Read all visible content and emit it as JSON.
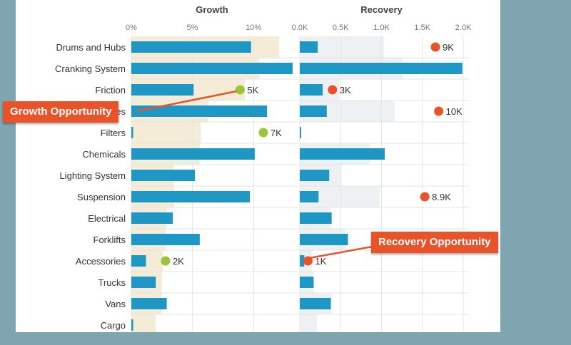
{
  "chart_data": {
    "type": "bar",
    "categories": [
      "Drums and Hubs",
      "Cranking System",
      "Friction",
      "Brakes",
      "Filters",
      "Chemicals",
      "Lighting System",
      "Suspension",
      "Electrical",
      "Forklifts",
      "Accessories",
      "Trucks",
      "Vans",
      "Cargo"
    ],
    "panels": [
      {
        "title": "Growth",
        "xlim": [
          0,
          13.2
        ],
        "ticks": [
          0,
          5,
          10
        ],
        "tick_labels": [
          "0%",
          "5%",
          "10%"
        ],
        "bar_values": [
          9.8,
          13.2,
          5.1,
          11.1,
          0.15,
          10.1,
          5.2,
          9.7,
          3.4,
          5.6,
          1.2,
          2.0,
          2.9,
          0.15
        ],
        "background_values": [
          12.1,
          10.5,
          9.3,
          6.3,
          5.7,
          5.6,
          3.5,
          3.5,
          2.9,
          2.8,
          2.6,
          2.5,
          2.5,
          2.0
        ],
        "markers": [
          {
            "category": "Friction",
            "value": 8.9,
            "label": "5K"
          },
          {
            "category": "Filters",
            "value": 10.8,
            "label": "7K"
          },
          {
            "category": "Accessories",
            "value": 2.8,
            "label": "2K"
          }
        ],
        "marker_color": "#9ac43a"
      },
      {
        "title": "Recovery",
        "xlim": [
          0,
          2000
        ],
        "ticks": [
          0,
          500,
          1000,
          1500,
          2000
        ],
        "tick_labels": [
          "0.0K",
          "0.5K",
          "1.0K",
          "1.5K",
          "2.0K"
        ],
        "bar_values": [
          220,
          1990,
          280,
          330,
          15,
          1040,
          360,
          230,
          390,
          590,
          55,
          170,
          380,
          0
        ],
        "background_values": [
          1030,
          1260,
          480,
          1160,
          0,
          860,
          510,
          980,
          380,
          560,
          150,
          170,
          390,
          210
        ],
        "markers": [
          {
            "category": "Drums and Hubs",
            "value": 1660,
            "label": "9K"
          },
          {
            "category": "Friction",
            "value": 400,
            "label": "3K"
          },
          {
            "category": "Brakes",
            "value": 1700,
            "label": "10K"
          },
          {
            "category": "Suspension",
            "value": 1530,
            "label": "8.9K"
          },
          {
            "category": "Accessories",
            "value": 100,
            "label": "1K"
          }
        ],
        "marker_color": "#e8532a"
      }
    ],
    "colors": {
      "bar": "#1f97c4",
      "growth_background": "#f5ecd7",
      "recovery_background": "#edf1f4"
    },
    "annotations": [
      {
        "text": "Growth Opportunity",
        "points_to": "Friction"
      },
      {
        "text": "Recovery Opportunity",
        "points_to": "Accessories"
      }
    ]
  }
}
